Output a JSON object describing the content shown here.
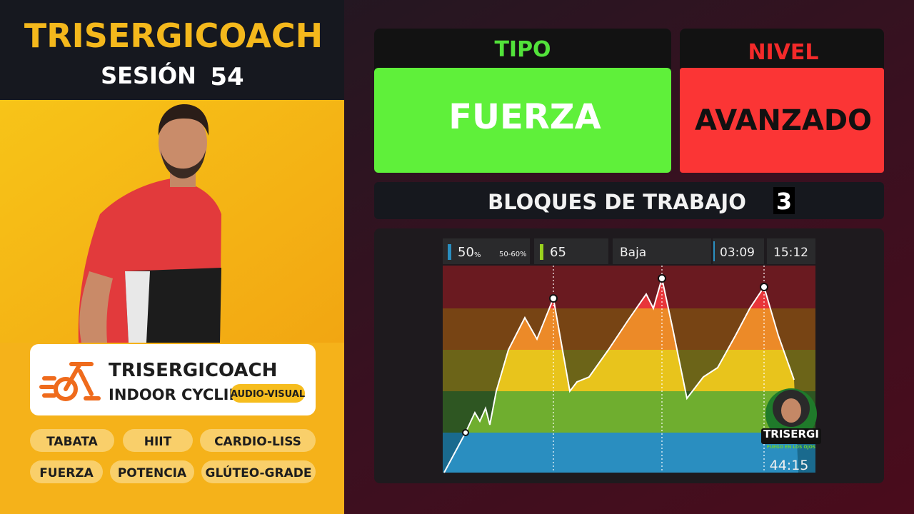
{
  "header": {
    "title": "TRISERGICOACH",
    "session_label": "SESIÓN",
    "session_number": "54"
  },
  "type_box": {
    "label": "TIPO",
    "value": "FUERZA"
  },
  "level_box": {
    "label": "NIVEL",
    "value": "AVANZADO"
  },
  "blocks": {
    "label": "BLOQUES DE TRABAJO",
    "value": "3"
  },
  "brand_card": {
    "title": "TRISERGICOACH",
    "subtitle": "INDOOR CYCLING",
    "badge": "AUDIO-VISUAL"
  },
  "tags": [
    "TABATA",
    "HIIT",
    "CARDIO-LISS",
    "FUERZA",
    "POTENCIA",
    "GLÚTEO-GRADE"
  ],
  "workout_panel": {
    "power": "50",
    "power_unit": "%",
    "power_range": "50-60%",
    "cadence": "65",
    "intensity": "Baja",
    "interval_time": "03:09",
    "elapsed_time": "15:12",
    "remaining_time": "44:15"
  },
  "logo": {
    "name": "TRISERGI",
    "tagline": "FUEGO EN LOS OJOS"
  }
}
